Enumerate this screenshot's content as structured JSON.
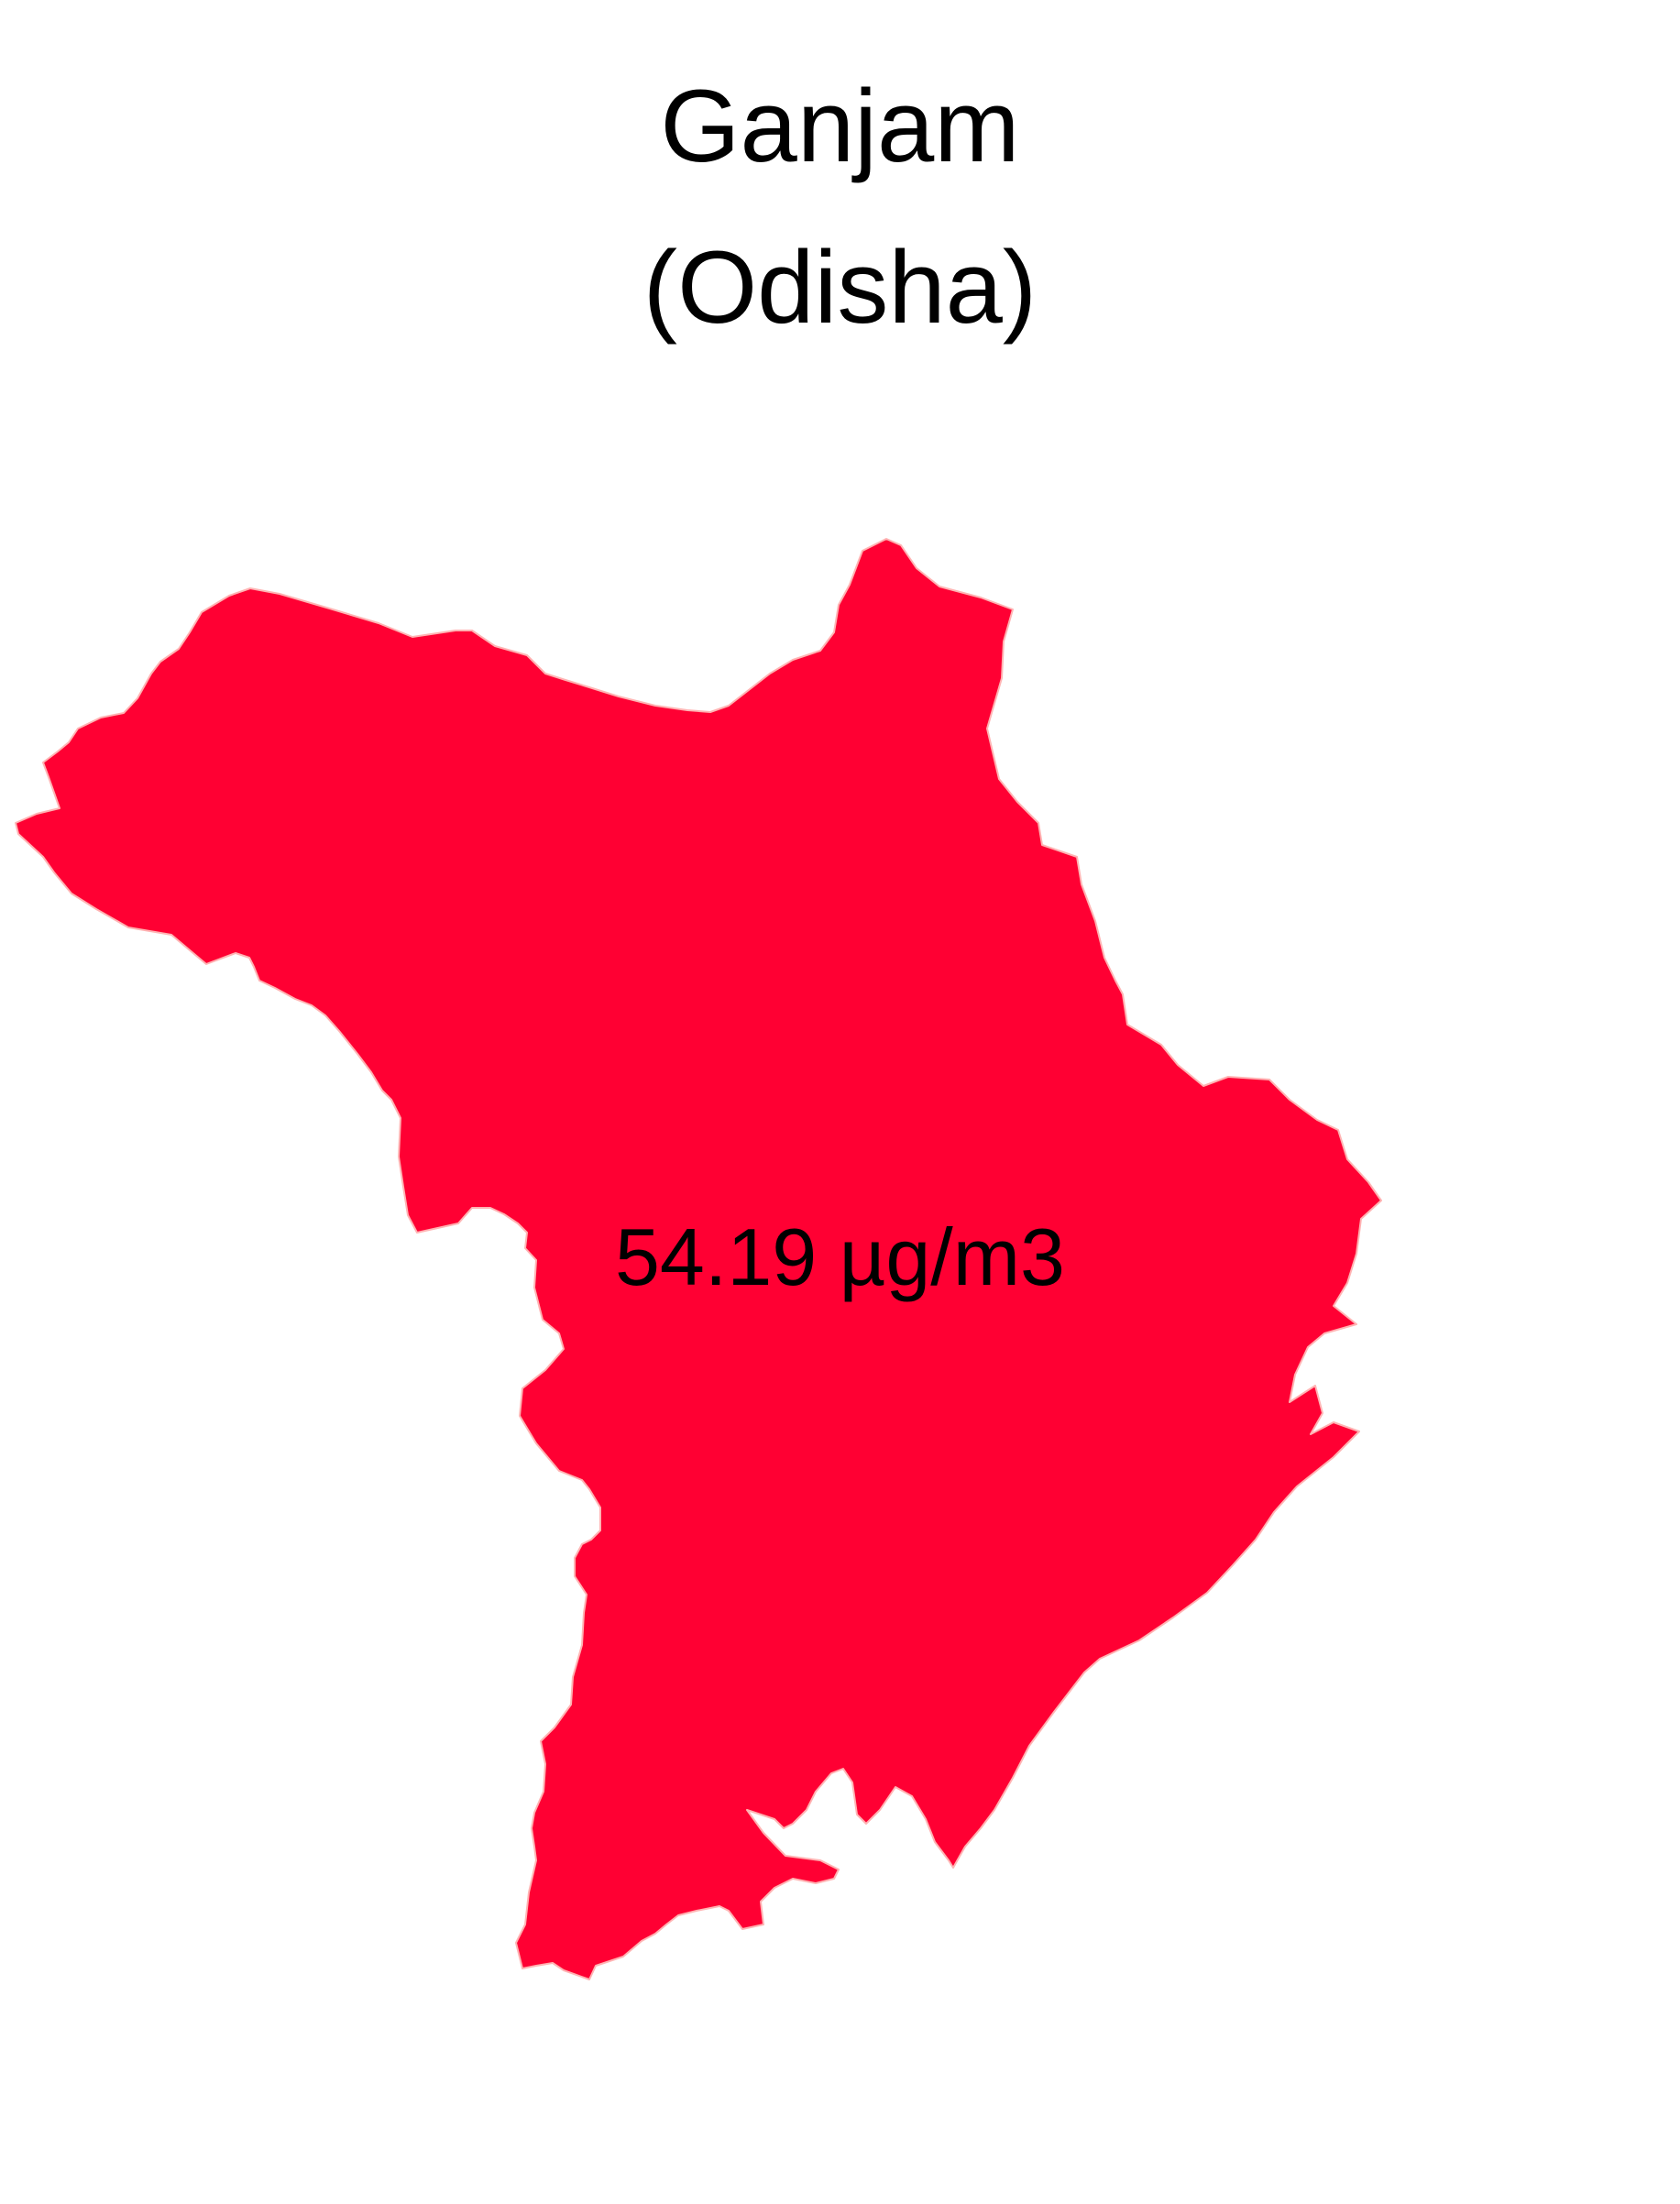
{
  "map": {
    "title_line1": "Ganjam",
    "title_line2": "(Odisha)",
    "region": {
      "name": "Ganjam",
      "state": "Odisha",
      "value_label": "54.19 µg/m3",
      "value": 54.19,
      "unit": "µg/m3"
    },
    "colors": {
      "fill": "#ff0033",
      "border": "#ffb3b3",
      "text": "#000000",
      "background": "#ffffff"
    }
  }
}
